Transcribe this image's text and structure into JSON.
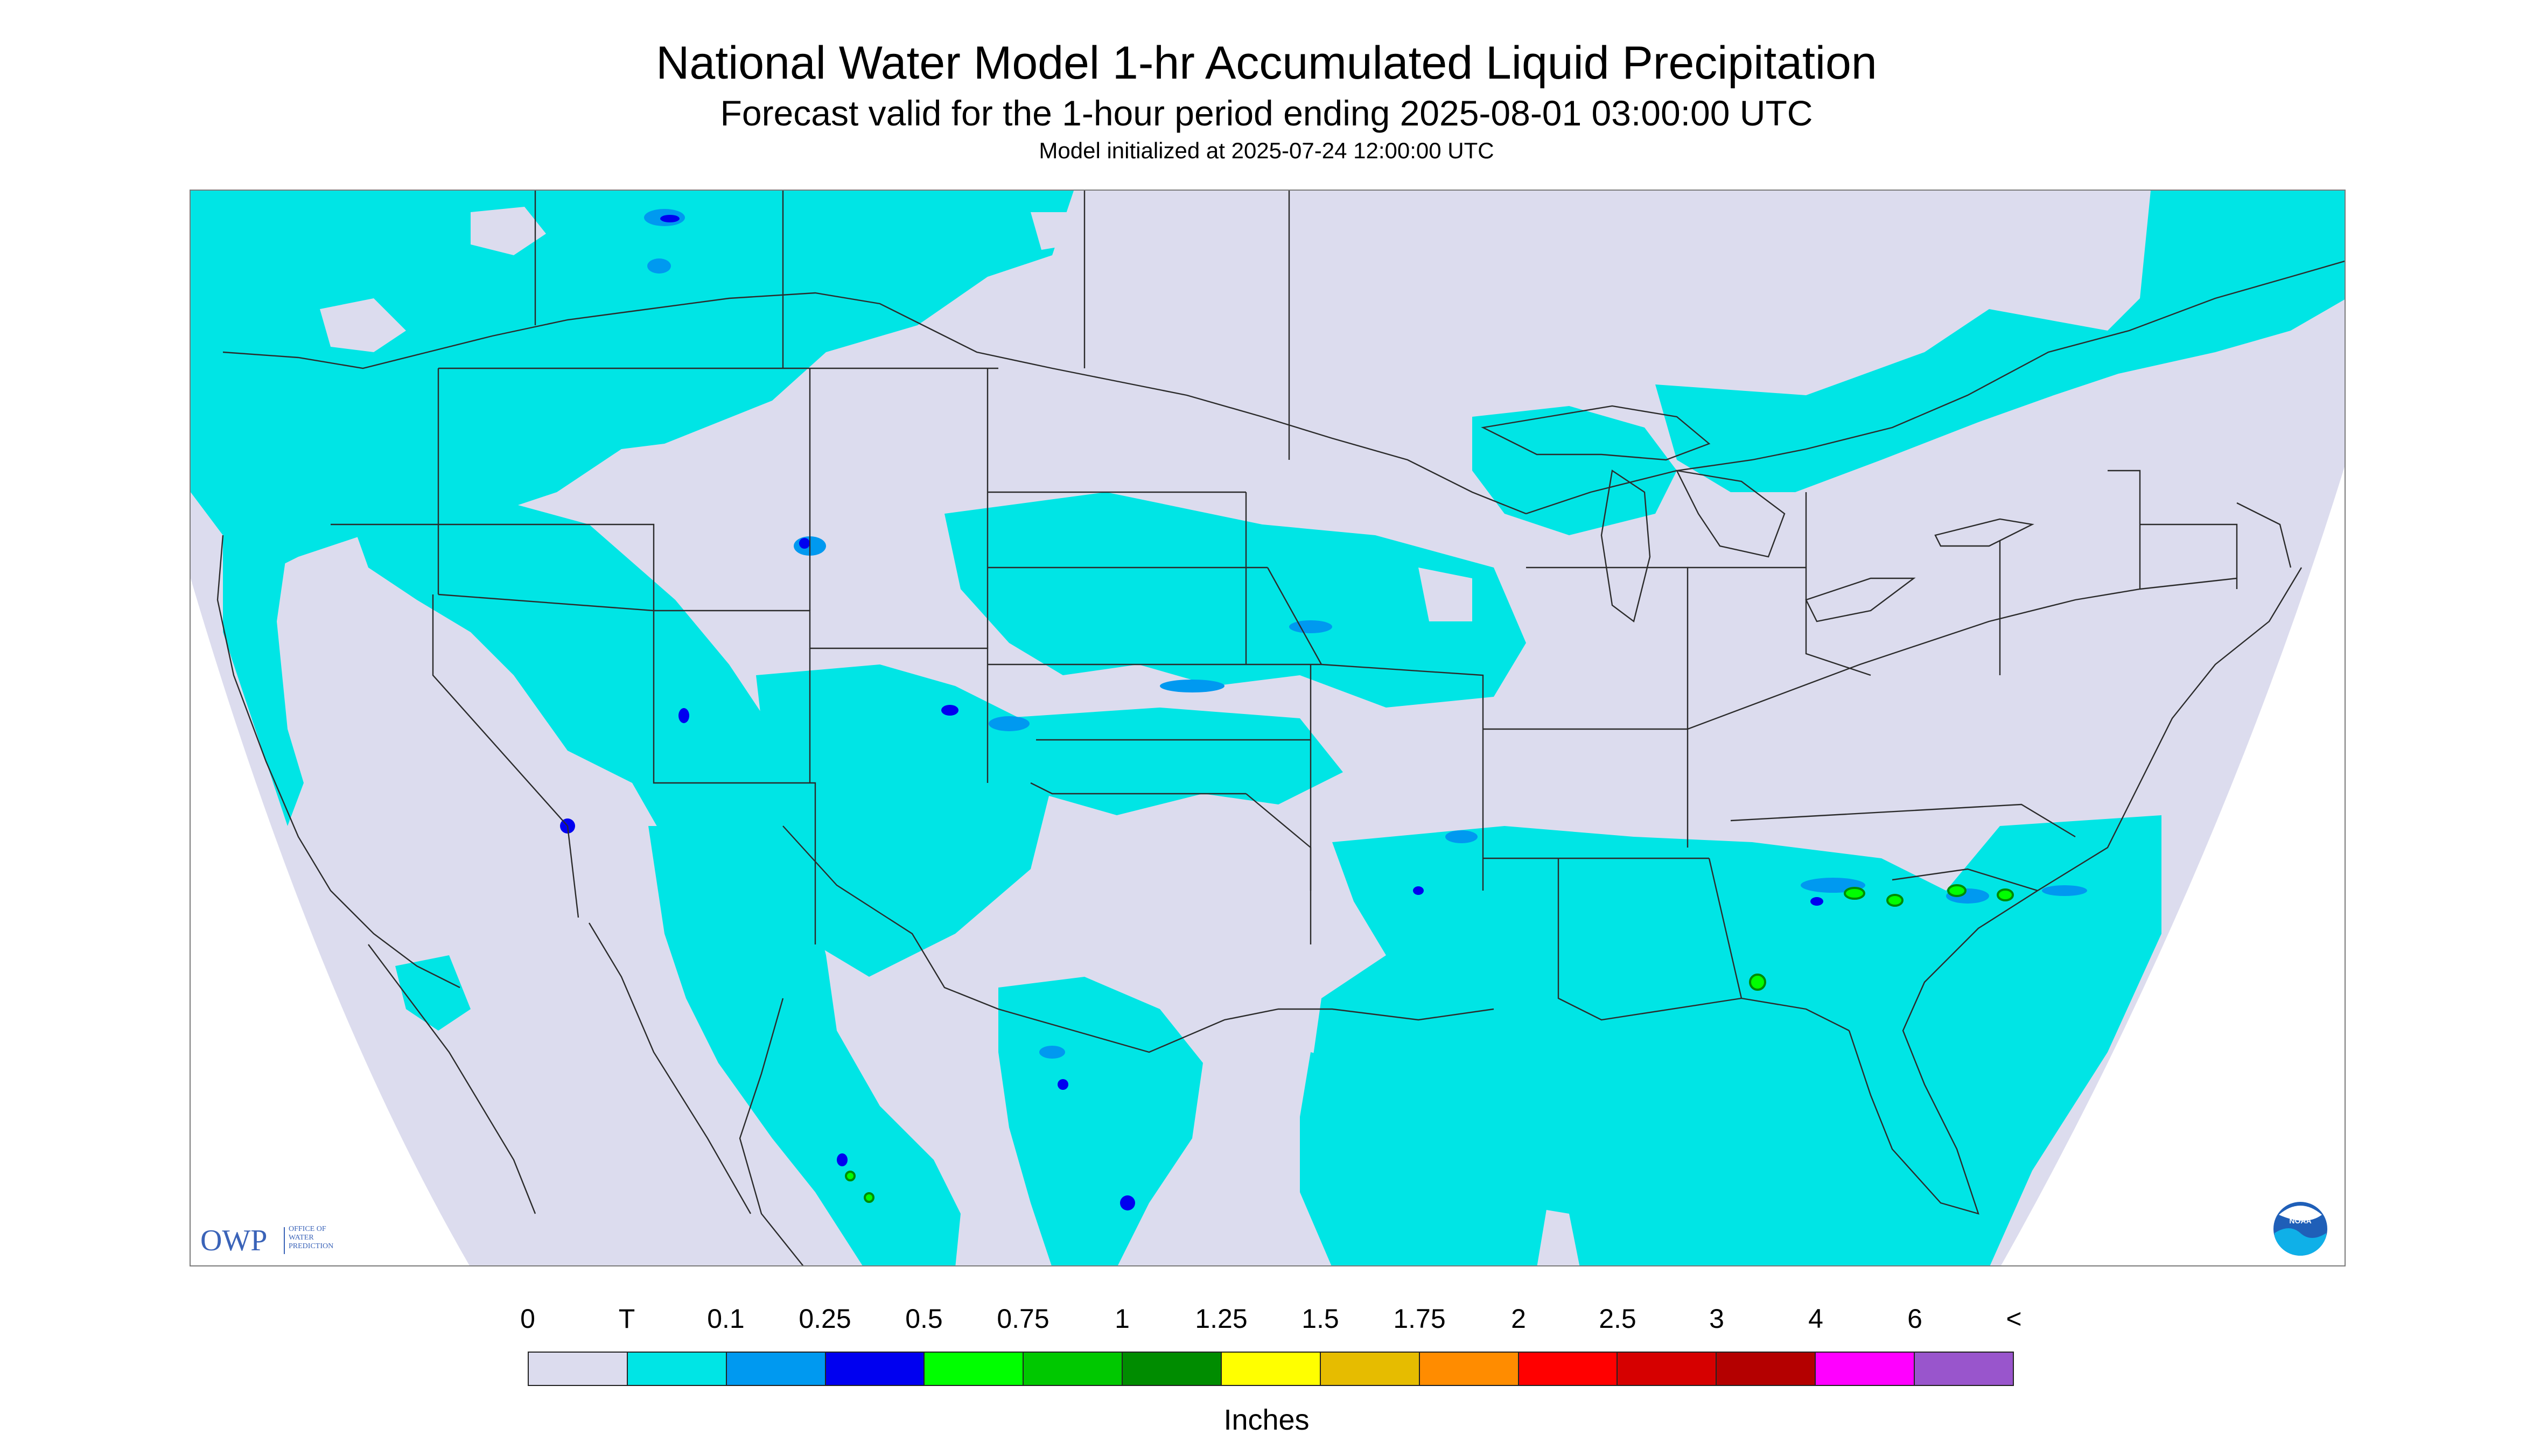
{
  "title": "National Water Model 1-hr Accumulated Liquid Precipitation",
  "subtitle": "Forecast valid for the 1-hour period ending 2025-08-01 03:00:00 UTC",
  "init_line": "Model initialized at 2025-07-24 12:00:00 UTC",
  "logos": {
    "owp_big": "OWP",
    "owp_small_1": "OFFICE OF",
    "owp_small_2": "WATER",
    "owp_small_3": "PREDICTION",
    "noaa": "NOAA"
  },
  "colors": {
    "no_data": "#dcdcee",
    "trace": "#00e5e5",
    "outline": "#2b2b2b"
  },
  "legend": {
    "labels": [
      "0",
      "T",
      "0.1",
      "0.25",
      "0.5",
      "0.75",
      "1",
      "1.25",
      "1.5",
      "1.75",
      "2",
      "2.5",
      "3",
      "4",
      "6",
      "<"
    ],
    "colors": [
      "#dcdcee",
      "#00e5e5",
      "#0099f0",
      "#0000f0",
      "#00ff00",
      "#00c800",
      "#008c00",
      "#ffff00",
      "#e6bc00",
      "#ff8c00",
      "#ff0000",
      "#d60000",
      "#b40000",
      "#ff00ff",
      "#9955cc"
    ],
    "units": "Inches"
  }
}
